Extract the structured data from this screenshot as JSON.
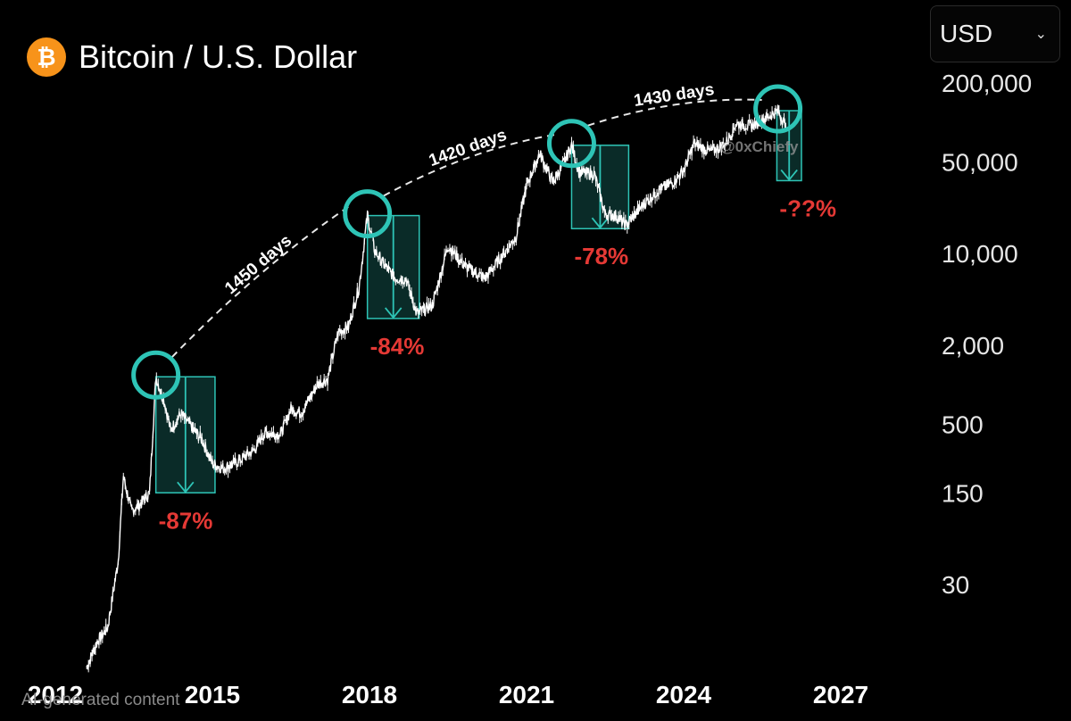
{
  "header": {
    "coin_symbol": "₿",
    "title": "Bitcoin / U.S. Dollar",
    "currency": "USD"
  },
  "footer": {
    "ai_note": "AI-generated content"
  },
  "colors": {
    "background": "#000000",
    "price_line": "#ffffff",
    "highlight": "#2ec4b6",
    "drawdown_label": "#e53935",
    "brand": "#f7931a"
  },
  "chart_data": {
    "type": "line",
    "title": "Bitcoin / U.S. Dollar",
    "y_scale": "log",
    "y_ticks": [
      {
        "value": 200000,
        "label": "200,000"
      },
      {
        "value": 50000,
        "label": "50,000"
      },
      {
        "value": 10000,
        "label": "10,000"
      },
      {
        "value": 2000,
        "label": "2,000"
      },
      {
        "value": 500,
        "label": "500"
      },
      {
        "value": 150,
        "label": "150"
      },
      {
        "value": 30,
        "label": "30"
      }
    ],
    "x_ticks": [
      2012,
      2015,
      2018,
      2021,
      2024,
      2027
    ],
    "xlim": [
      2012,
      2027.3
    ],
    "ylim": [
      10,
      300000
    ],
    "grid": false,
    "series": [
      {
        "x": [
          2012.6,
          2012.8,
          2013.0,
          2013.2,
          2013.3,
          2013.45,
          2013.6,
          2013.8,
          2013.92,
          2014.1,
          2014.2,
          2014.4,
          2014.6,
          2014.8,
          2015.0,
          2015.2,
          2015.5,
          2015.8,
          2016.0,
          2016.3,
          2016.5,
          2016.7,
          2017.0,
          2017.2,
          2017.4,
          2017.6,
          2017.8,
          2017.96,
          2018.1,
          2018.3,
          2018.5,
          2018.7,
          2018.9,
          2019.2,
          2019.5,
          2019.8,
          2020.0,
          2020.2,
          2020.5,
          2020.8,
          2021.0,
          2021.25,
          2021.5,
          2021.7,
          2021.86,
          2022.0,
          2022.3,
          2022.5,
          2022.7,
          2022.9,
          2023.2,
          2023.5,
          2023.8,
          2024.0,
          2024.2,
          2024.5,
          2024.8,
          2025.0,
          2025.3,
          2025.6,
          2025.8,
          2025.95
        ],
        "y": [
          7,
          11,
          14,
          45,
          200,
          110,
          120,
          150,
          1150,
          700,
          450,
          600,
          480,
          380,
          250,
          230,
          260,
          320,
          430,
          420,
          650,
          610,
          1000,
          1100,
          2500,
          2800,
          5500,
          19500,
          10500,
          8000,
          6500,
          6400,
          3500,
          4000,
          11500,
          8200,
          7200,
          6500,
          9200,
          13500,
          33000,
          58000,
          35000,
          48000,
          67000,
          42000,
          40000,
          20000,
          19500,
          16500,
          23000,
          30000,
          35000,
          43000,
          69000,
          60000,
          68000,
          98000,
          94000,
          110000,
          123000,
          95000
        ]
      }
    ],
    "cycle_peaks": [
      {
        "x": 2013.92,
        "y": 1150
      },
      {
        "x": 2017.96,
        "y": 19500
      },
      {
        "x": 2021.86,
        "y": 67000
      },
      {
        "x": 2025.8,
        "y": 123000
      }
    ],
    "cycle_intervals": [
      {
        "from": 2013.92,
        "to": 2017.96,
        "label": "1450 days"
      },
      {
        "from": 2017.96,
        "to": 2021.86,
        "label": "1420 days"
      },
      {
        "from": 2021.86,
        "to": 2025.8,
        "label": "1430 days"
      }
    ],
    "drawdowns": [
      {
        "x_start": 2013.92,
        "x_end": 2015.05,
        "top": 1150,
        "bottom": 150,
        "label": "-87%"
      },
      {
        "x_start": 2017.96,
        "x_end": 2018.95,
        "top": 19500,
        "bottom": 3200,
        "label": "-84%"
      },
      {
        "x_start": 2021.86,
        "x_end": 2022.95,
        "top": 67000,
        "bottom": 15500,
        "label": "-78%"
      },
      {
        "x_start": 2025.78,
        "x_end": 2026.25,
        "top": 123000,
        "bottom": 36000,
        "label": "-??%"
      }
    ],
    "watermark": "@0xChiefy"
  }
}
